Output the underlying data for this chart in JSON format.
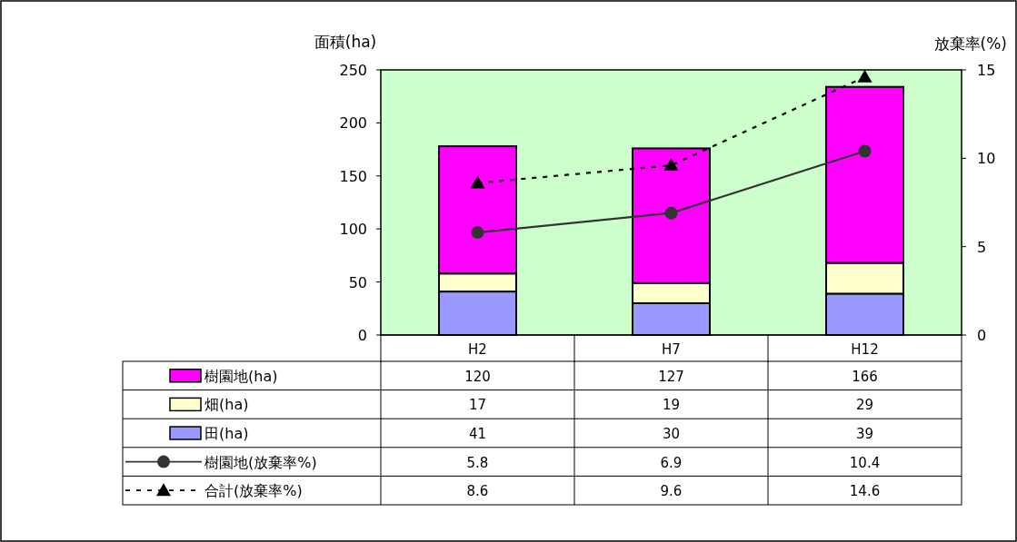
{
  "chart_data": {
    "type": "bar",
    "stacked": true,
    "ylabel": "面積(ha)",
    "y2label": "放棄率(%)",
    "categories": [
      "H2",
      "H7",
      "H12"
    ],
    "series": [
      {
        "name": "田(ha)",
        "color": "#9999ff",
        "values": [
          41,
          30,
          39
        ]
      },
      {
        "name": "畑(ha)",
        "color": "#ffffcc",
        "values": [
          17,
          19,
          29
        ]
      },
      {
        "name": "樹園地(ha)",
        "color": "#ff00ff",
        "values": [
          120,
          127,
          166
        ]
      },
      {
        "name": "樹園地(放棄率%)",
        "type": "line",
        "axis": "y2",
        "color": "#333333",
        "marker": "circle",
        "line_style": "solid",
        "values": [
          5.8,
          6.9,
          10.4
        ]
      },
      {
        "name": "合計(放棄率%)",
        "type": "line",
        "axis": "y2",
        "color": "#000000",
        "marker": "triangle",
        "line_style": "dashed",
        "values": [
          8.6,
          9.6,
          14.6
        ]
      }
    ],
    "ylim": [
      0,
      250
    ],
    "yticks": [
      0,
      50,
      100,
      150,
      200,
      250
    ],
    "y2lim": [
      0,
      15
    ],
    "y2ticks": [
      0,
      5,
      10,
      15
    ],
    "data_labels": true,
    "legend": "bottom"
  }
}
